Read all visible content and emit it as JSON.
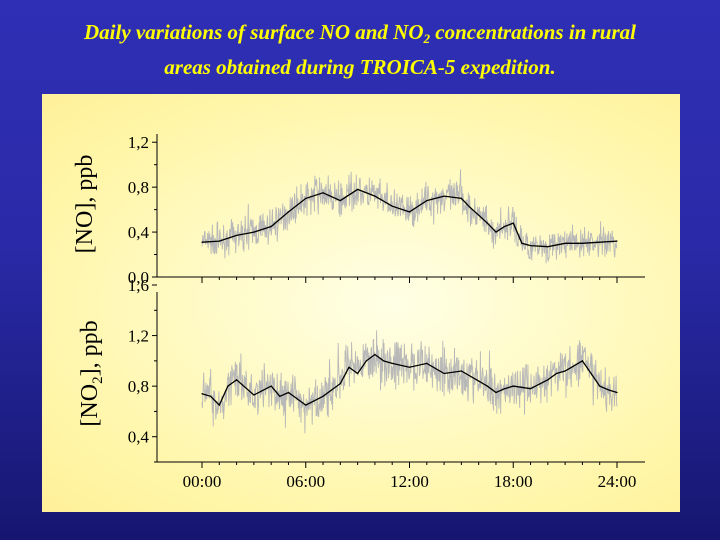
{
  "title": {
    "line1_pre": "Daily variations of surface NO and NO",
    "line1_sub": "2",
    "line1_post": " concentrations in rural",
    "line2": "areas obtained during TROICA-5 expedition."
  },
  "colors": {
    "background": "#2a2aa8",
    "title": "#ffff00",
    "panel": "#fff6a8",
    "raw_series": "#b8b8b8",
    "mean_series": "#000000"
  },
  "chart_data": [
    {
      "type": "line",
      "ylabel": "[NO], ppb",
      "ylim": [
        0.0,
        1.3
      ],
      "yticks": [
        "0,0",
        "0,4",
        "0,8",
        "1,2"
      ],
      "ytick_values": [
        0.0,
        0.4,
        0.8,
        1.2
      ],
      "xlim": [
        "00:00",
        "24:00"
      ],
      "series": [
        {
          "x": [
            "00:00",
            "01:00",
            "02:00",
            "03:00",
            "04:00",
            "05:00",
            "06:00",
            "07:00",
            "08:00",
            "09:00",
            "10:00",
            "11:00",
            "12:00",
            "13:00",
            "14:00",
            "15:00",
            "15:30",
            "16:00",
            "16:30",
            "17:00",
            "17:30",
            "18:00",
            "18:30",
            "19:00",
            "20:00",
            "21:00",
            "22:00",
            "23:00",
            "24:00"
          ],
          "values": [
            0.31,
            0.32,
            0.37,
            0.4,
            0.45,
            0.58,
            0.7,
            0.75,
            0.68,
            0.78,
            0.72,
            0.63,
            0.58,
            0.68,
            0.72,
            0.7,
            0.62,
            0.55,
            0.48,
            0.4,
            0.45,
            0.48,
            0.3,
            0.28,
            0.27,
            0.3,
            0.3,
            0.31,
            0.32
          ]
        }
      ]
    },
    {
      "type": "line",
      "ylabel": "[NO2], ppb",
      "ylim": [
        0.2,
        1.6
      ],
      "yticks": [
        "0,4",
        "0,8",
        "1,2",
        "1,6"
      ],
      "ytick_values": [
        0.4,
        0.8,
        1.2,
        1.6
      ],
      "xticks": [
        "00:00",
        "06:00",
        "12:00",
        "18:00",
        "24:00"
      ],
      "xlim": [
        "00:00",
        "24:00"
      ],
      "series": [
        {
          "x": [
            "00:00",
            "00:30",
            "01:00",
            "01:30",
            "02:00",
            "03:00",
            "04:00",
            "04:30",
            "05:00",
            "06:00",
            "07:00",
            "08:00",
            "08:30",
            "09:00",
            "09:30",
            "10:00",
            "10:30",
            "11:00",
            "12:00",
            "13:00",
            "14:00",
            "15:00",
            "16:00",
            "16:30",
            "17:00",
            "17:30",
            "18:00",
            "19:00",
            "20:00",
            "20:30",
            "21:00",
            "22:00",
            "22:30",
            "23:00",
            "23:30",
            "24:00"
          ],
          "values": [
            0.74,
            0.72,
            0.65,
            0.8,
            0.85,
            0.73,
            0.8,
            0.72,
            0.75,
            0.65,
            0.72,
            0.82,
            0.95,
            0.9,
            1.0,
            1.05,
            1.0,
            0.98,
            0.95,
            0.98,
            0.9,
            0.92,
            0.84,
            0.8,
            0.75,
            0.78,
            0.8,
            0.78,
            0.85,
            0.9,
            0.92,
            1.0,
            0.9,
            0.8,
            0.77,
            0.75
          ]
        }
      ]
    }
  ]
}
